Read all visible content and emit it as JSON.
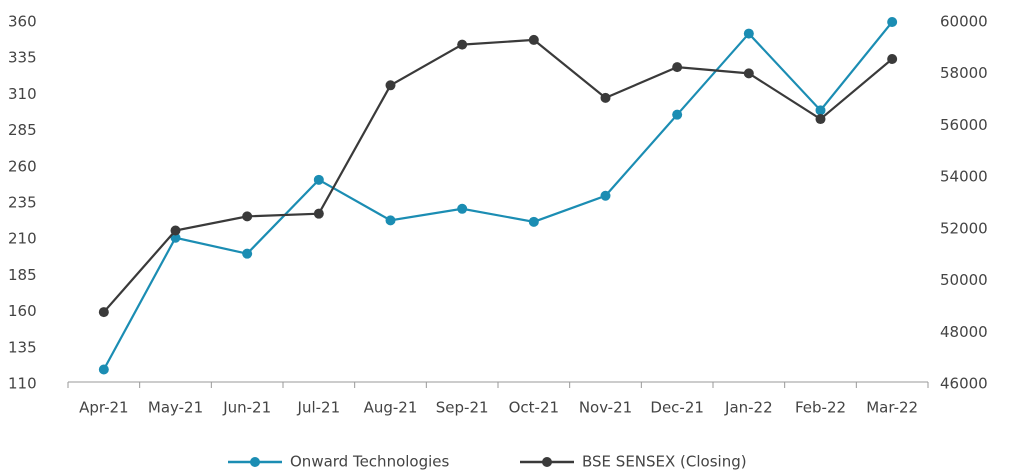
{
  "chart_data": {
    "type": "line",
    "categories": [
      "Apr-21",
      "May-21",
      "Jun-21",
      "Jul-21",
      "Aug-21",
      "Sep-21",
      "Oct-21",
      "Nov-21",
      "Dec-21",
      "Jan-22",
      "Feb-22",
      "Mar-22"
    ],
    "series": [
      {
        "name": "Onward Technologies",
        "color": "#1b8db3",
        "values": [
          120,
          211,
          200,
          251,
          223,
          231,
          222,
          240,
          296,
          352,
          299,
          360
        ]
      },
      {
        "name": "BSE SENSEX (Closing)",
        "color": "#3a3a3a",
        "axis": "y2",
        "values": [
          48782,
          51937,
          52483,
          52587,
          57552,
          59126,
          59307,
          57065,
          58254,
          58014,
          56247,
          58569
        ]
      }
    ],
    "ylim": [
      110,
      360
    ],
    "yticks": [
      110,
      135,
      160,
      185,
      210,
      235,
      260,
      285,
      310,
      335,
      360
    ],
    "y2lim": [
      46000,
      60000
    ],
    "y2ticks": [
      46000,
      48000,
      50000,
      52000,
      54000,
      56000,
      58000,
      60000
    ],
    "grid": false,
    "legend": "bottom"
  }
}
